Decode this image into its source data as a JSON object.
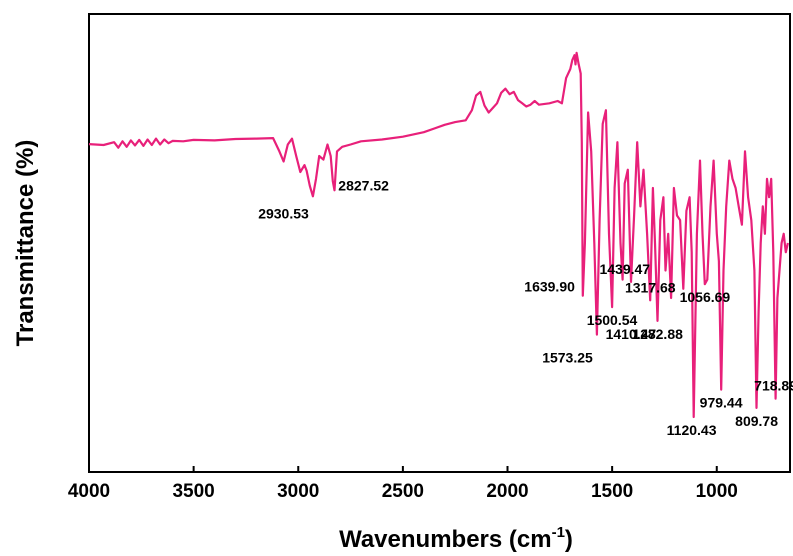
{
  "chart_data": {
    "type": "line",
    "xlabel_main": "Wavenumbers (cm",
    "xlabel_sup": "-1",
    "xlabel_close": ")",
    "ylabel": "Transmittance (%)",
    "xlim": [
      4000,
      650
    ],
    "ylim": [
      0,
      100
    ],
    "x_reversed": true,
    "y_tick_labels_shown": false,
    "xticks": [
      4000,
      3500,
      3000,
      2500,
      2000,
      1500,
      1000
    ],
    "xtick_labels": [
      "4000",
      "3500",
      "3000",
      "2500",
      "2000",
      "1500",
      "1000"
    ],
    "series": [
      {
        "color": "#e8207a",
        "x": [
          4000,
          3930,
          3880,
          3860,
          3840,
          3820,
          3800,
          3780,
          3760,
          3740,
          3720,
          3700,
          3680,
          3660,
          3640,
          3620,
          3600,
          3550,
          3500,
          3400,
          3300,
          3200,
          3120,
          3090,
          3070,
          3050,
          3030,
          3010,
          2990,
          2970,
          2960,
          2945,
          2930,
          2915,
          2900,
          2880,
          2860,
          2845,
          2835,
          2827,
          2815,
          2790,
          2750,
          2700,
          2600,
          2500,
          2400,
          2350,
          2300,
          2250,
          2200,
          2170,
          2150,
          2130,
          2110,
          2090,
          2070,
          2050,
          2030,
          2010,
          1990,
          1970,
          1950,
          1930,
          1910,
          1890,
          1870,
          1850,
          1800,
          1760,
          1740,
          1720,
          1700,
          1690,
          1680,
          1675,
          1670,
          1660,
          1650,
          1645,
          1640,
          1630,
          1615,
          1600,
          1585,
          1573,
          1560,
          1545,
          1530,
          1515,
          1500,
          1488,
          1475,
          1460,
          1450,
          1440,
          1425,
          1410,
          1395,
          1380,
          1365,
          1350,
          1333,
          1318,
          1305,
          1295,
          1283,
          1270,
          1255,
          1245,
          1232,
          1218,
          1205,
          1190,
          1175,
          1160,
          1145,
          1130,
          1120,
          1110,
          1095,
          1080,
          1068,
          1057,
          1045,
          1030,
          1015,
          1000,
          990,
          979,
          968,
          955,
          940,
          925,
          910,
          895,
          880,
          865,
          850,
          835,
          820,
          810,
          800,
          790,
          780,
          770,
          760,
          750,
          740,
          730,
          719,
          710,
          700,
          690,
          680,
          670,
          660
        ],
        "y": [
          71.6,
          71.4,
          72.0,
          70.8,
          72.2,
          71.0,
          72.4,
          71.3,
          72.5,
          71.2,
          72.6,
          71.4,
          72.8,
          71.5,
          72.6,
          71.8,
          72.3,
          72.2,
          72.5,
          72.4,
          72.7,
          72.8,
          72.9,
          70.0,
          67.8,
          71.5,
          72.8,
          69.0,
          65.5,
          67.0,
          65.8,
          62.5,
          60.2,
          64.0,
          69.0,
          68.2,
          71.5,
          69.0,
          63.5,
          61.5,
          70.0,
          71.0,
          71.5,
          72.2,
          72.6,
          73.2,
          74.2,
          75.0,
          75.8,
          76.4,
          76.8,
          79.0,
          82.2,
          83.0,
          80.0,
          78.5,
          79.5,
          80.5,
          82.8,
          83.7,
          82.5,
          83.0,
          81.2,
          80.5,
          79.8,
          80.2,
          81.0,
          80.2,
          80.5,
          81.0,
          80.5,
          86.0,
          88.0,
          90.0,
          91.0,
          89.0,
          91.5,
          89.0,
          87.0,
          72.0,
          38.5,
          50.0,
          78.5,
          70.0,
          50.0,
          30.0,
          55.0,
          76.0,
          79.0,
          52.0,
          36.0,
          62.0,
          72.0,
          50.0,
          42.0,
          63.0,
          66.0,
          41.5,
          56.0,
          72.0,
          58.0,
          66.0,
          52.0,
          37.5,
          62.0,
          50.0,
          33.0,
          55.0,
          60.0,
          44.0,
          52.0,
          38.0,
          62.0,
          56.0,
          55.0,
          40.0,
          57.0,
          60.0,
          48.0,
          12.0,
          52.0,
          68.0,
          52.0,
          41.0,
          42.0,
          58.0,
          68.0,
          52.0,
          46.0,
          18.0,
          44.0,
          58.0,
          68.0,
          64.0,
          62.0,
          58.0,
          54.0,
          70.0,
          60.0,
          55.0,
          44.0,
          14.0,
          35.0,
          50.0,
          58.0,
          52.0,
          64.0,
          60.0,
          64.0,
          48.0,
          16.0,
          38.0,
          44.0,
          50.0,
          52.0,
          48.0,
          50.0
        ]
      }
    ],
    "annotations": [
      {
        "text": "2930.53",
        "x": 2930.53,
        "y": 60.2,
        "pos": "below-left"
      },
      {
        "text": "2827.52",
        "x": 2827.52,
        "y": 61.5,
        "pos": "right"
      },
      {
        "text": "1639.90",
        "x": 1639.9,
        "y": 38.5,
        "pos": "left"
      },
      {
        "text": "1573.25",
        "x": 1573.25,
        "y": 30.0,
        "pos": "left-below"
      },
      {
        "text": "1439.47",
        "x": 1439.47,
        "y": 41.5,
        "pos": "above"
      },
      {
        "text": "1500.54",
        "x": 1500.54,
        "y": 36.0,
        "pos": "below"
      },
      {
        "text": "1317.68",
        "x": 1317.68,
        "y": 37.5,
        "pos": "above"
      },
      {
        "text": "1410.47",
        "x": 1410.47,
        "y": 33.0,
        "pos": "below"
      },
      {
        "text": "1282.88",
        "x": 1282.88,
        "y": 33.0,
        "pos": "below"
      },
      {
        "text": "1056.69",
        "x": 1056.69,
        "y": 41.0,
        "pos": "below"
      },
      {
        "text": "1120.43",
        "x": 1120.43,
        "y": 12.0,
        "pos": "below"
      },
      {
        "text": "979.44",
        "x": 979.44,
        "y": 18.0,
        "pos": "below"
      },
      {
        "text": "809.78",
        "x": 809.78,
        "y": 14.0,
        "pos": "below"
      },
      {
        "text": "718.89",
        "x": 718.89,
        "y": 16.0,
        "pos": "above"
      }
    ]
  }
}
